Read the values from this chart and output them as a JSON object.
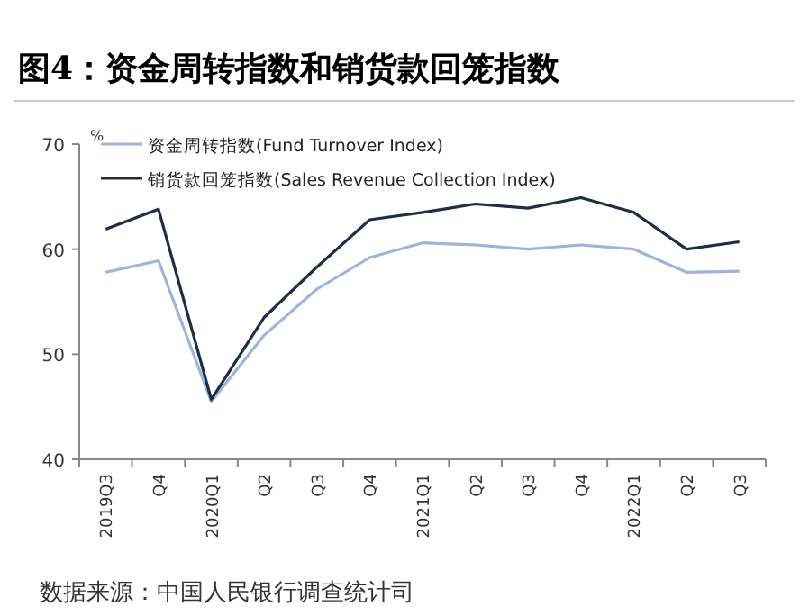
{
  "chart_data": {
    "type": "line",
    "title": "图4：资金周转指数和销货款回笼指数",
    "ylabel": "%",
    "categories": [
      "2019Q3",
      "Q4",
      "2020Q1",
      "Q2",
      "Q3",
      "Q4",
      "2021Q1",
      "Q2",
      "Q3",
      "Q4",
      "2022Q1",
      "Q2",
      "Q3"
    ],
    "series": [
      {
        "name": "资金周转指数(Fund Turnover Index)",
        "color": "#9db5d9",
        "values": [
          57.8,
          58.9,
          45.5,
          51.8,
          56.2,
          59.2,
          60.6,
          60.4,
          60.0,
          60.4,
          60.0,
          57.8,
          57.9
        ]
      },
      {
        "name": "销货款回笼指数(Sales Revenue Collection Index)",
        "color": "#1f2d45",
        "values": [
          61.9,
          63.8,
          45.7,
          53.5,
          58.3,
          62.8,
          63.5,
          64.3,
          63.9,
          64.9,
          63.5,
          60.0,
          60.7
        ]
      }
    ],
    "ylim": [
      40,
      70
    ],
    "yticks": [
      40,
      50,
      60,
      70
    ],
    "grid": false,
    "legend": "top left",
    "marker": "none",
    "line_style": "solid",
    "annotations": [
      "数据来源：中国人民银行调查统计司"
    ]
  }
}
